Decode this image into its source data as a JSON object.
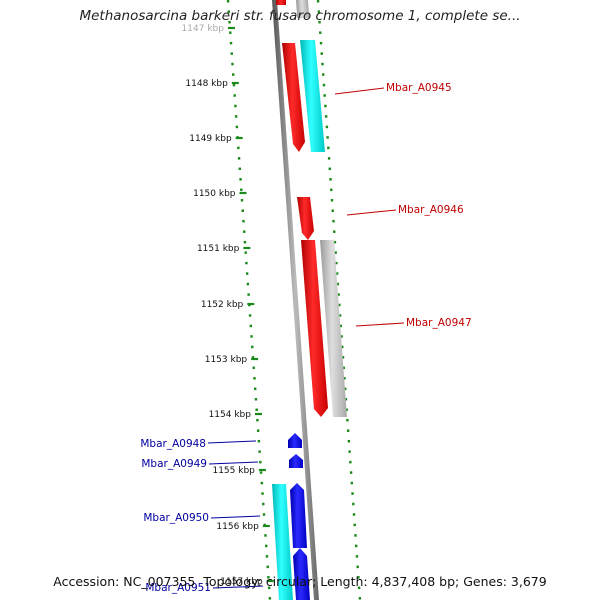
{
  "title": "Methanosarcina barkeri str. fusaro chromosome 1, complete se...",
  "footer": {
    "accession": "Accession: NC_007355",
    "topology": "Topology: circular; Length: 4,837,408 bp; Genes: 3,679"
  },
  "colors": {
    "forward_gene": "#e80000",
    "reverse_gene": "#0000ee",
    "cyan_feature": "#00e0e0",
    "gray_feature": "#b8b8b8",
    "ruler_ticks": "#1a8a1a",
    "label_red": "#c00000",
    "label_blue": "#0000a0"
  },
  "ruler": {
    "ticks": [
      "1147 kbp",
      "1148 kbp",
      "1149 kbp",
      "1150 kbp",
      "1151 kbp",
      "1152 kbp",
      "1153 kbp",
      "1154 kbp",
      "1155 kbp",
      "1156 kbp",
      "1157 kbp"
    ]
  },
  "gene_labels": [
    {
      "name": "Mbar_A0945",
      "strand": "forward"
    },
    {
      "name": "Mbar_A0946",
      "strand": "forward"
    },
    {
      "name": "Mbar_A0947",
      "strand": "forward"
    },
    {
      "name": "Mbar_A0948",
      "strand": "reverse"
    },
    {
      "name": "Mbar_A0949",
      "strand": "reverse"
    },
    {
      "name": "Mbar_A0950",
      "strand": "reverse"
    },
    {
      "name": "Mbar_A0951",
      "strand": "reverse"
    }
  ]
}
